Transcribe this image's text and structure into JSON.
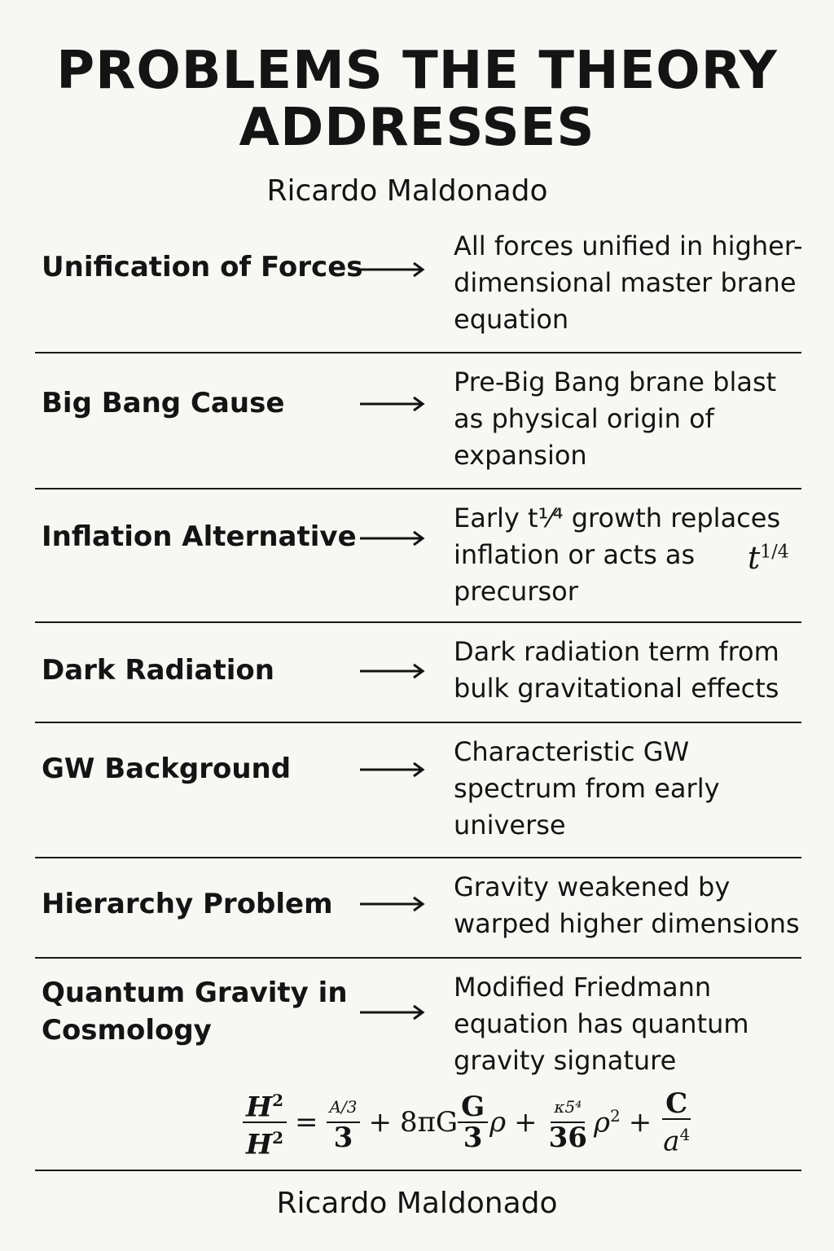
{
  "header": {
    "title_line1": "PROBLEMS THE THEORY",
    "title_line2": "ADDRESSES",
    "author": "Ricardo Maldonado"
  },
  "rows": [
    {
      "problem": [
        "Unification of Forces"
      ],
      "description": [
        "All forces unified in higher-",
        "dimensional master brane",
        "equation"
      ]
    },
    {
      "problem": [
        "Big Bang Cause"
      ],
      "description": [
        "Pre-Big Bang brane blast",
        "as physical origin of",
        "expansion"
      ]
    },
    {
      "problem": [
        "Inflation Alternative"
      ],
      "description": [
        "Early t¹⁄⁴ growth replaces",
        "inflation or acts as",
        "precursor"
      ]
    },
    {
      "problem": [
        "Dark Radiation"
      ],
      "description": [
        "Dark radiation term from",
        "bulk gravitational effects"
      ]
    },
    {
      "problem": [
        "GW Background"
      ],
      "description": [
        "Characteristic GW",
        "spectrum from early",
        "universe"
      ]
    },
    {
      "problem": [
        "Hierarchy Problem"
      ],
      "description": [
        "Gravity weakened by",
        "warped higher dimensions"
      ]
    },
    {
      "problem": [
        "Quantum Gravity in",
        "Cosmology"
      ],
      "description": [
        "Modified Friedmann",
        "equation has quantum",
        "gravity signature"
      ]
    }
  ],
  "inflation_note": {
    "base": "t",
    "exponent": "1/4"
  },
  "equation": {
    "lhs_num": "H",
    "lhs_num_exp": "2",
    "lhs_den": "H",
    "lhs_den_exp": "2",
    "equals": "=",
    "t1_num": "A/3",
    "t1_den": "3",
    "plus1": "+",
    "t2_coef": "8πG",
    "t2_num": "G",
    "t2_den": "3",
    "t2_var": "ρ",
    "plus2": "+",
    "t3_num": "κ5⁴",
    "t3_den": "36",
    "t3_var": "ρ",
    "t3_exp": "2",
    "plus3": "+",
    "t4_num": "C",
    "t4_den": "a",
    "t4_den_exp": "4"
  },
  "footer": {
    "author": "Ricardo Maldonado"
  }
}
